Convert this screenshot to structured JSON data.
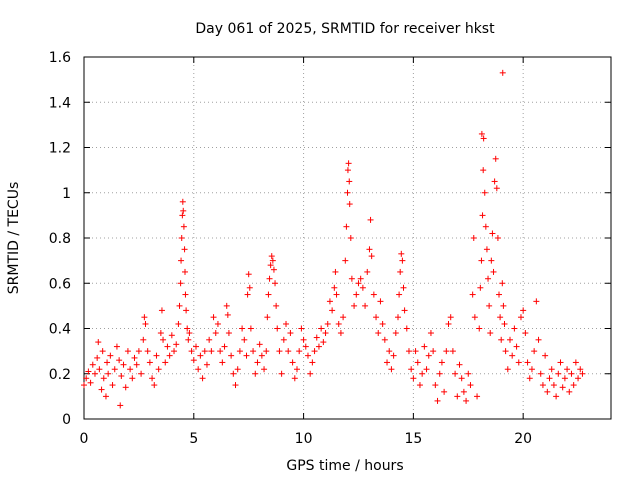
{
  "chart_data": {
    "type": "scatter",
    "title": "Day 061 of 2025, SRMTID for receiver hkst",
    "xlabel": "GPS time / hours",
    "ylabel": "SRMTID / TECUs",
    "xlim": [
      0,
      24
    ],
    "ylim": [
      0,
      1.6
    ],
    "xticks": [
      0,
      5,
      10,
      15,
      20
    ],
    "xtick_labels": [
      "0",
      "5",
      "10",
      "15",
      "20"
    ],
    "yticks": [
      0,
      0.2,
      0.4,
      0.6,
      0.8,
      1.0,
      1.2,
      1.4,
      1.6
    ],
    "ytick_labels": [
      "0",
      "0.2",
      "0.4",
      "0.6",
      "0.8",
      "1",
      "1.2",
      "1.4",
      "1.6"
    ],
    "grid": true,
    "marker": "+",
    "colors": {
      "series": "#ff0000",
      "grid": "#a0a0a0",
      "axis": "#000000"
    },
    "series": [
      {
        "name": "hkst",
        "points": [
          [
            0.0,
            0.15
          ],
          [
            0.1,
            0.18
          ],
          [
            0.2,
            0.21
          ],
          [
            0.3,
            0.16
          ],
          [
            0.4,
            0.24
          ],
          [
            0.5,
            0.2
          ],
          [
            0.6,
            0.27
          ],
          [
            0.65,
            0.34
          ],
          [
            0.7,
            0.22
          ],
          [
            0.8,
            0.13
          ],
          [
            0.85,
            0.3
          ],
          [
            0.9,
            0.18
          ],
          [
            1.0,
            0.1
          ],
          [
            1.05,
            0.25
          ],
          [
            1.1,
            0.2
          ],
          [
            1.2,
            0.28
          ],
          [
            1.3,
            0.15
          ],
          [
            1.4,
            0.22
          ],
          [
            1.5,
            0.32
          ],
          [
            1.6,
            0.26
          ],
          [
            1.65,
            0.06
          ],
          [
            1.7,
            0.19
          ],
          [
            1.8,
            0.24
          ],
          [
            1.9,
            0.14
          ],
          [
            2.0,
            0.3
          ],
          [
            2.1,
            0.22
          ],
          [
            2.2,
            0.18
          ],
          [
            2.3,
            0.27
          ],
          [
            2.4,
            0.24
          ],
          [
            2.5,
            0.3
          ],
          [
            2.6,
            0.2
          ],
          [
            2.7,
            0.35
          ],
          [
            2.75,
            0.45
          ],
          [
            2.8,
            0.42
          ],
          [
            2.9,
            0.3
          ],
          [
            3.0,
            0.25
          ],
          [
            3.1,
            0.18
          ],
          [
            3.2,
            0.15
          ],
          [
            3.3,
            0.28
          ],
          [
            3.4,
            0.22
          ],
          [
            3.5,
            0.38
          ],
          [
            3.55,
            0.48
          ],
          [
            3.6,
            0.35
          ],
          [
            3.7,
            0.25
          ],
          [
            3.8,
            0.32
          ],
          [
            3.9,
            0.28
          ],
          [
            4.0,
            0.37
          ],
          [
            4.1,
            0.3
          ],
          [
            4.2,
            0.33
          ],
          [
            4.3,
            0.42
          ],
          [
            4.35,
            0.5
          ],
          [
            4.4,
            0.6
          ],
          [
            4.42,
            0.7
          ],
          [
            4.45,
            0.8
          ],
          [
            4.48,
            0.9
          ],
          [
            4.5,
            0.96
          ],
          [
            4.52,
            0.92
          ],
          [
            4.55,
            0.85
          ],
          [
            4.58,
            0.75
          ],
          [
            4.6,
            0.65
          ],
          [
            4.62,
            0.55
          ],
          [
            4.65,
            0.48
          ],
          [
            4.7,
            0.4
          ],
          [
            4.75,
            0.35
          ],
          [
            4.8,
            0.38
          ],
          [
            4.9,
            0.3
          ],
          [
            5.0,
            0.26
          ],
          [
            5.1,
            0.32
          ],
          [
            5.2,
            0.22
          ],
          [
            5.3,
            0.28
          ],
          [
            5.4,
            0.18
          ],
          [
            5.5,
            0.3
          ],
          [
            5.6,
            0.24
          ],
          [
            5.7,
            0.35
          ],
          [
            5.8,
            0.3
          ],
          [
            5.9,
            0.45
          ],
          [
            6.0,
            0.38
          ],
          [
            6.1,
            0.42
          ],
          [
            6.2,
            0.3
          ],
          [
            6.3,
            0.25
          ],
          [
            6.4,
            0.32
          ],
          [
            6.5,
            0.5
          ],
          [
            6.55,
            0.46
          ],
          [
            6.6,
            0.38
          ],
          [
            6.7,
            0.28
          ],
          [
            6.8,
            0.2
          ],
          [
            6.9,
            0.15
          ],
          [
            7.0,
            0.22
          ],
          [
            7.1,
            0.3
          ],
          [
            7.2,
            0.4
          ],
          [
            7.3,
            0.35
          ],
          [
            7.4,
            0.28
          ],
          [
            7.45,
            0.55
          ],
          [
            7.5,
            0.64
          ],
          [
            7.55,
            0.58
          ],
          [
            7.6,
            0.4
          ],
          [
            7.7,
            0.3
          ],
          [
            7.8,
            0.2
          ],
          [
            7.9,
            0.25
          ],
          [
            8.0,
            0.33
          ],
          [
            8.1,
            0.28
          ],
          [
            8.2,
            0.22
          ],
          [
            8.3,
            0.3
          ],
          [
            8.35,
            0.45
          ],
          [
            8.4,
            0.55
          ],
          [
            8.45,
            0.62
          ],
          [
            8.5,
            0.68
          ],
          [
            8.55,
            0.72
          ],
          [
            8.6,
            0.7
          ],
          [
            8.65,
            0.66
          ],
          [
            8.7,
            0.6
          ],
          [
            8.75,
            0.5
          ],
          [
            8.8,
            0.4
          ],
          [
            8.9,
            0.3
          ],
          [
            9.0,
            0.2
          ],
          [
            9.1,
            0.35
          ],
          [
            9.2,
            0.42
          ],
          [
            9.3,
            0.3
          ],
          [
            9.4,
            0.38
          ],
          [
            9.5,
            0.25
          ],
          [
            9.6,
            0.18
          ],
          [
            9.7,
            0.22
          ],
          [
            9.8,
            0.3
          ],
          [
            9.9,
            0.4
          ],
          [
            10.0,
            0.35
          ],
          [
            10.1,
            0.32
          ],
          [
            10.2,
            0.28
          ],
          [
            10.3,
            0.2
          ],
          [
            10.4,
            0.25
          ],
          [
            10.5,
            0.3
          ],
          [
            10.6,
            0.36
          ],
          [
            10.7,
            0.32
          ],
          [
            10.8,
            0.4
          ],
          [
            10.9,
            0.34
          ],
          [
            11.0,
            0.38
          ],
          [
            11.1,
            0.42
          ],
          [
            11.2,
            0.52
          ],
          [
            11.3,
            0.48
          ],
          [
            11.4,
            0.58
          ],
          [
            11.45,
            0.65
          ],
          [
            11.5,
            0.55
          ],
          [
            11.6,
            0.42
          ],
          [
            11.7,
            0.38
          ],
          [
            11.8,
            0.45
          ],
          [
            11.9,
            0.7
          ],
          [
            11.95,
            0.85
          ],
          [
            12.0,
            1.0
          ],
          [
            12.02,
            1.1
          ],
          [
            12.05,
            1.13
          ],
          [
            12.08,
            1.05
          ],
          [
            12.1,
            0.95
          ],
          [
            12.15,
            0.8
          ],
          [
            12.2,
            0.62
          ],
          [
            12.3,
            0.5
          ],
          [
            12.4,
            0.55
          ],
          [
            12.5,
            0.6
          ],
          [
            12.6,
            0.62
          ],
          [
            12.7,
            0.58
          ],
          [
            12.8,
            0.5
          ],
          [
            12.9,
            0.65
          ],
          [
            13.0,
            0.75
          ],
          [
            13.05,
            0.88
          ],
          [
            13.1,
            0.72
          ],
          [
            13.2,
            0.55
          ],
          [
            13.3,
            0.45
          ],
          [
            13.4,
            0.38
          ],
          [
            13.5,
            0.52
          ],
          [
            13.6,
            0.42
          ],
          [
            13.7,
            0.35
          ],
          [
            13.8,
            0.25
          ],
          [
            13.9,
            0.3
          ],
          [
            14.0,
            0.22
          ],
          [
            14.1,
            0.28
          ],
          [
            14.2,
            0.38
          ],
          [
            14.3,
            0.45
          ],
          [
            14.35,
            0.55
          ],
          [
            14.4,
            0.65
          ],
          [
            14.45,
            0.73
          ],
          [
            14.5,
            0.7
          ],
          [
            14.55,
            0.58
          ],
          [
            14.6,
            0.48
          ],
          [
            14.7,
            0.4
          ],
          [
            14.8,
            0.3
          ],
          [
            14.9,
            0.22
          ],
          [
            15.0,
            0.18
          ],
          [
            15.1,
            0.3
          ],
          [
            15.2,
            0.25
          ],
          [
            15.3,
            0.15
          ],
          [
            15.4,
            0.2
          ],
          [
            15.5,
            0.32
          ],
          [
            15.6,
            0.22
          ],
          [
            15.7,
            0.28
          ],
          [
            15.8,
            0.38
          ],
          [
            15.9,
            0.3
          ],
          [
            16.0,
            0.15
          ],
          [
            16.1,
            0.08
          ],
          [
            16.2,
            0.2
          ],
          [
            16.3,
            0.25
          ],
          [
            16.4,
            0.12
          ],
          [
            16.5,
            0.3
          ],
          [
            16.6,
            0.42
          ],
          [
            16.7,
            0.45
          ],
          [
            16.8,
            0.3
          ],
          [
            16.9,
            0.2
          ],
          [
            17.0,
            0.1
          ],
          [
            17.1,
            0.24
          ],
          [
            17.2,
            0.18
          ],
          [
            17.3,
            0.12
          ],
          [
            17.4,
            0.08
          ],
          [
            17.5,
            0.2
          ],
          [
            17.6,
            0.15
          ],
          [
            17.7,
            0.55
          ],
          [
            17.75,
            0.8
          ],
          [
            17.8,
            0.45
          ],
          [
            17.9,
            0.1
          ],
          [
            18.0,
            0.4
          ],
          [
            18.05,
            0.58
          ],
          [
            18.1,
            0.7
          ],
          [
            18.15,
            0.9
          ],
          [
            18.18,
            1.1
          ],
          [
            18.2,
            1.24
          ],
          [
            18.25,
            1.0
          ],
          [
            18.3,
            0.85
          ],
          [
            18.35,
            0.75
          ],
          [
            18.4,
            0.62
          ],
          [
            18.45,
            0.5
          ],
          [
            18.5,
            0.38
          ],
          [
            18.55,
            0.7
          ],
          [
            18.6,
            0.82
          ],
          [
            18.65,
            0.65
          ],
          [
            18.7,
            1.05
          ],
          [
            18.75,
            1.15
          ],
          [
            18.8,
            1.02
          ],
          [
            18.85,
            0.8
          ],
          [
            18.9,
            0.55
          ],
          [
            18.95,
            0.45
          ],
          [
            19.0,
            0.35
          ],
          [
            19.05,
            0.6
          ],
          [
            19.1,
            0.5
          ],
          [
            19.15,
            0.42
          ],
          [
            19.2,
            0.3
          ],
          [
            19.3,
            0.22
          ],
          [
            19.4,
            0.35
          ],
          [
            19.5,
            0.28
          ],
          [
            19.6,
            0.4
          ],
          [
            19.7,
            0.32
          ],
          [
            19.8,
            0.25
          ],
          [
            19.9,
            0.45
          ],
          [
            20.0,
            0.48
          ],
          [
            20.1,
            0.38
          ],
          [
            20.2,
            0.25
          ],
          [
            20.3,
            0.18
          ],
          [
            20.4,
            0.22
          ],
          [
            20.5,
            0.3
          ],
          [
            20.6,
            0.52
          ],
          [
            20.7,
            0.35
          ],
          [
            20.8,
            0.2
          ],
          [
            20.9,
            0.15
          ],
          [
            21.0,
            0.28
          ],
          [
            21.1,
            0.12
          ],
          [
            21.2,
            0.18
          ],
          [
            21.3,
            0.22
          ],
          [
            21.4,
            0.15
          ],
          [
            21.5,
            0.1
          ],
          [
            21.6,
            0.2
          ],
          [
            21.7,
            0.25
          ],
          [
            21.8,
            0.14
          ],
          [
            21.9,
            0.18
          ],
          [
            22.0,
            0.22
          ],
          [
            22.1,
            0.12
          ],
          [
            22.2,
            0.2
          ],
          [
            22.3,
            0.15
          ],
          [
            22.4,
            0.25
          ],
          [
            22.5,
            0.18
          ],
          [
            22.6,
            0.22
          ],
          [
            22.7,
            0.2
          ],
          [
            18.12,
            1.26
          ],
          [
            19.07,
            1.53
          ]
        ]
      }
    ]
  }
}
